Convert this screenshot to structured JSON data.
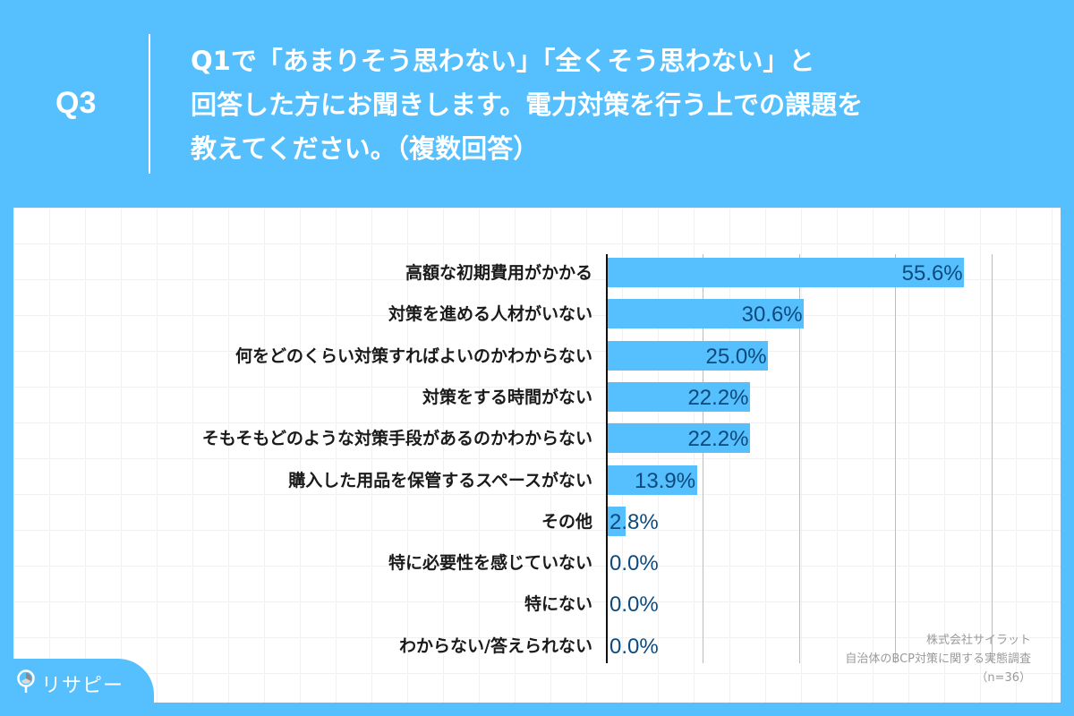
{
  "header": {
    "question_number": "Q3",
    "question_lines": [
      "Q1で「あまりそう思わない」「全くそう思わない」と",
      "回答した方にお聞きします。電力対策を行う上での課題を",
      "教えてください。（複数回答）"
    ]
  },
  "chart_data": {
    "type": "bar",
    "orientation": "horizontal",
    "title": "Q1で「あまりそう思わない」「全くそう思わない」と回答した方にお聞きします。電力対策を行う上での課題を教えてください。（複数回答）",
    "categories": [
      "高額な初期費用がかかる",
      "対策を進める人材がいない",
      "何をどのくらい対策すればよいのかわからない",
      "対策をする時間がない",
      "そもそもどのような対策手段があるのかわからない",
      "購入した用品を保管するスペースがない",
      "その他",
      "特に必要性を感じていない",
      "特にない",
      "わからない/答えられない"
    ],
    "values": [
      55.6,
      30.6,
      25.0,
      22.2,
      22.2,
      13.9,
      2.8,
      0.0,
      0.0,
      0.0
    ],
    "value_labels": [
      "55.6%",
      "30.6%",
      "25.0%",
      "22.2%",
      "22.2%",
      "13.9%",
      "2.8%",
      "0.0%",
      "0.0%",
      "0.0%"
    ],
    "xlabel": "",
    "ylabel": "",
    "xlim": [
      0,
      65
    ],
    "gridlines_at": [
      15,
      30,
      45,
      60
    ],
    "grid": true,
    "bar_color": "#56bffd",
    "value_color": "#0c4a7d"
  },
  "source": {
    "company": "株式会社サイラット",
    "survey": "自治体のBCP対策に関する実態調査",
    "sample": "（n=36）"
  },
  "logo": {
    "text": "リサピー",
    "icon": "pin-pie-icon"
  },
  "colors": {
    "background": "#56bffd",
    "panel": "#ffffff",
    "label_text": "#1a1a1a",
    "value_text": "#0c4a7d",
    "source_text": "#9a9a9a"
  }
}
